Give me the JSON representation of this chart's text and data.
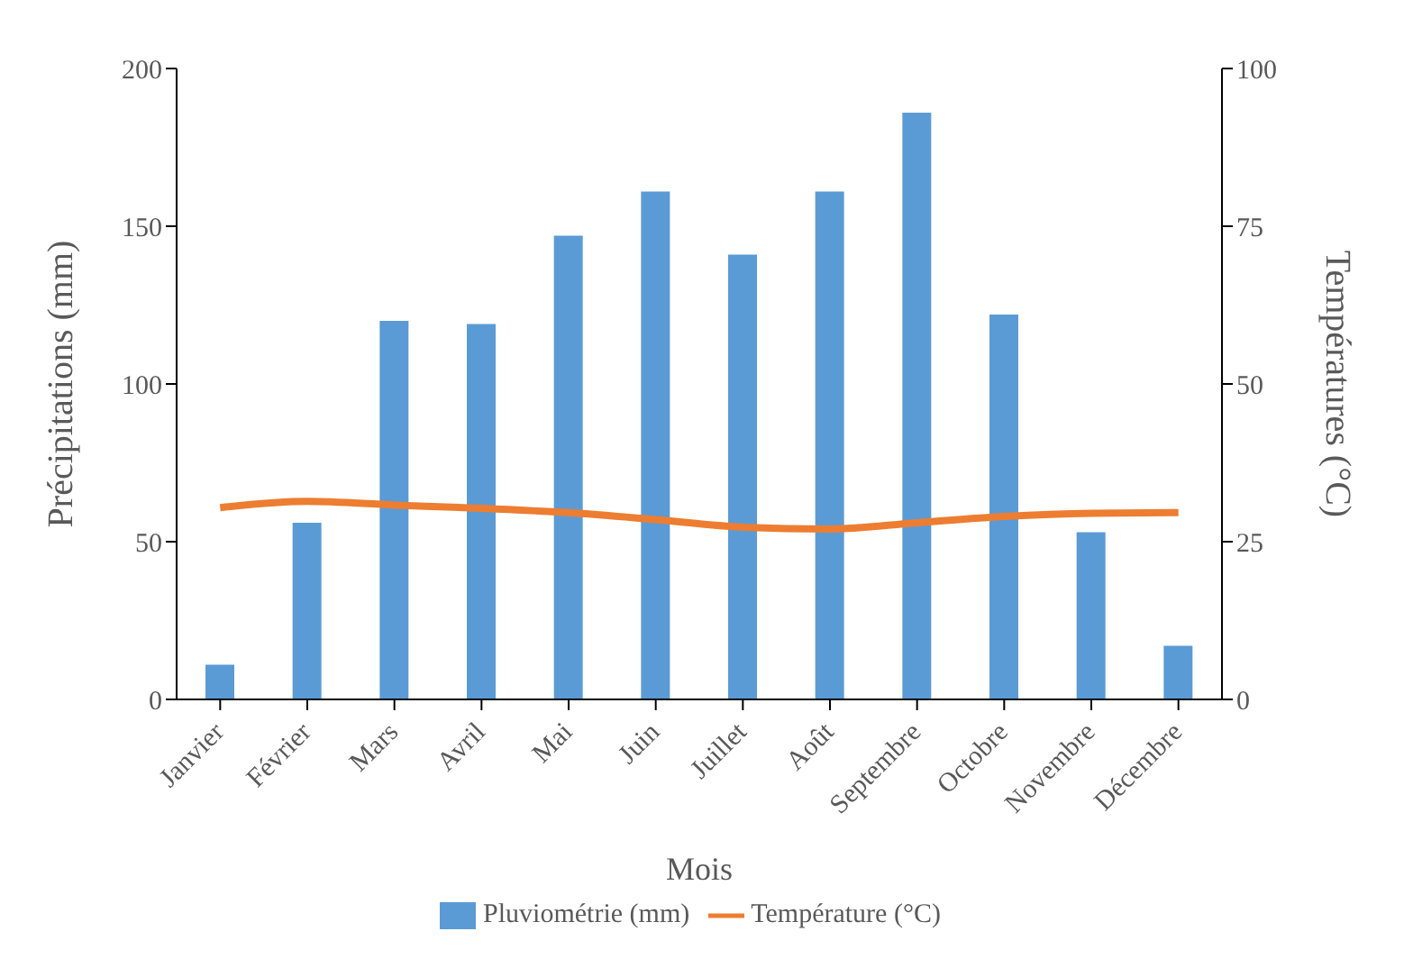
{
  "chart_data": {
    "type": "bar",
    "xlabel": "Mois",
    "ylabel": "Précipitations (mm)",
    "y2label": "Températures (°C)",
    "categories": [
      "Janvier",
      "Février",
      "Mars",
      "Avril",
      "Mai",
      "Juin",
      "Juillet",
      "Août",
      "Septembre",
      "Octobre",
      "Novembre",
      "Décembre"
    ],
    "series": [
      {
        "name": "Pluviométrie (mm)",
        "color": "#5b9bd5",
        "values": [
          11,
          56,
          120,
          119,
          147,
          161,
          141,
          161,
          186,
          122,
          53,
          17
        ]
      },
      {
        "name": "Température (°C)",
        "type": "line",
        "axis": "y2",
        "color": "#ed7d31",
        "values": [
          30.4,
          31.4,
          30.8,
          30.3,
          29.6,
          28.5,
          27.3,
          27,
          28,
          29,
          29.5,
          29.6
        ]
      }
    ],
    "ylim": [
      0,
      200
    ],
    "yticks": [
      0,
      50,
      100,
      150,
      200
    ],
    "y2lim": [
      0,
      100
    ],
    "y2ticks": [
      0,
      25,
      50,
      75,
      100
    ],
    "grid": false,
    "legend": "bottom",
    "marker": "none",
    "line_style": "solid"
  }
}
